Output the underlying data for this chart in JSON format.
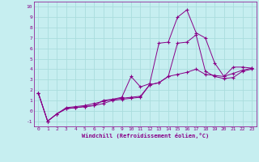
{
  "xlabel": "Windchill (Refroidissement éolien,°C)",
  "xlim": [
    -0.5,
    23.5
  ],
  "ylim": [
    -1.5,
    10.5
  ],
  "xticks": [
    0,
    1,
    2,
    3,
    4,
    5,
    6,
    7,
    8,
    9,
    10,
    11,
    12,
    13,
    14,
    15,
    16,
    17,
    18,
    19,
    20,
    21,
    22,
    23
  ],
  "yticks": [
    -1,
    0,
    1,
    2,
    3,
    4,
    5,
    6,
    7,
    8,
    9,
    10
  ],
  "bg_color": "#c6eef0",
  "line_color": "#880088",
  "grid_color": "#aadddd",
  "series": [
    [
      1.7,
      -1.0,
      -0.3,
      0.3,
      0.4,
      0.5,
      0.7,
      0.9,
      1.1,
      1.3,
      3.3,
      2.3,
      2.6,
      6.5,
      6.6,
      9.0,
      9.7,
      7.5,
      7.0,
      4.6,
      3.3,
      4.2,
      4.2,
      4.1
    ],
    [
      1.7,
      -1.0,
      -0.3,
      0.2,
      0.3,
      0.4,
      0.5,
      0.7,
      1.0,
      1.1,
      1.2,
      1.3,
      2.5,
      2.7,
      3.3,
      6.5,
      6.6,
      7.3,
      3.8,
      3.3,
      3.1,
      3.2,
      3.8,
      4.0
    ],
    [
      1.7,
      -1.0,
      -0.3,
      0.2,
      0.3,
      0.4,
      0.5,
      1.0,
      1.1,
      1.2,
      1.3,
      1.4,
      2.5,
      2.7,
      3.3,
      3.5,
      3.7,
      4.0,
      3.5,
      3.4,
      3.3,
      3.6,
      3.9,
      4.1
    ]
  ]
}
